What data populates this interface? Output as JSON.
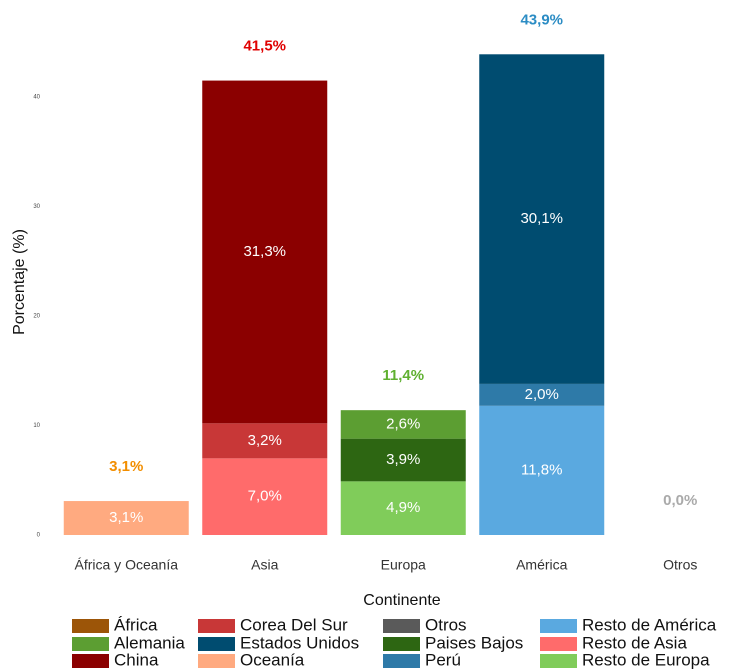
{
  "chart_data": {
    "type": "stacked_bar",
    "x_label": "Continente",
    "y_label": "Porcentaje (%)",
    "categories": [
      "África y Oceanía",
      "Asia",
      "Europa",
      "América",
      "Otros"
    ],
    "ylim": [
      0,
      48
    ],
    "yticks": [
      0,
      10,
      20,
      30,
      40
    ],
    "series": [
      {
        "name": "África",
        "color": "#9c5508",
        "values": [
          null,
          null,
          null,
          null,
          null
        ]
      },
      {
        "name": "Alemania",
        "color": "#5c9e32",
        "values": [
          null,
          null,
          2.6,
          null,
          null
        ],
        "value_labels": [
          null,
          null,
          "2,6%",
          null,
          null
        ]
      },
      {
        "name": "China",
        "color": "#8b0000",
        "values": [
          null,
          31.3,
          null,
          null,
          null
        ],
        "value_labels": [
          null,
          "31,3%",
          null,
          null,
          null
        ]
      },
      {
        "name": "Corea Del Sur",
        "color": "#c83737",
        "values": [
          null,
          3.2,
          null,
          null,
          null
        ],
        "value_labels": [
          null,
          "3,2%",
          null,
          null,
          null
        ]
      },
      {
        "name": "Estados Unidos",
        "color": "#004c70",
        "values": [
          null,
          null,
          null,
          30.1,
          null
        ],
        "value_labels": [
          null,
          null,
          null,
          "30,1%",
          null
        ]
      },
      {
        "name": "Oceanía",
        "color": "#ffaa80",
        "values": [
          3.1,
          null,
          null,
          null,
          null
        ],
        "value_labels": [
          "3,1%",
          null,
          null,
          null,
          null
        ]
      },
      {
        "name": "Otros",
        "color": "#5a5a5a",
        "values": [
          null,
          null,
          null,
          null,
          null
        ]
      },
      {
        "name": "Paises Bajos",
        "color": "#2d6612",
        "values": [
          null,
          null,
          3.9,
          null,
          null
        ],
        "value_labels": [
          null,
          null,
          "3,9%",
          null,
          null
        ]
      },
      {
        "name": "Perú",
        "color": "#2e7aa8",
        "values": [
          null,
          null,
          null,
          2.0,
          null
        ],
        "value_labels": [
          null,
          null,
          null,
          "2,0%",
          null
        ]
      },
      {
        "name": "Resto de América",
        "color": "#5aa9e0",
        "values": [
          null,
          null,
          null,
          11.8,
          null
        ],
        "value_labels": [
          null,
          null,
          null,
          "11,8%",
          null
        ]
      },
      {
        "name": "Resto de Asia",
        "color": "#ff6b6b",
        "values": [
          null,
          7.0,
          null,
          null,
          null
        ],
        "value_labels": [
          null,
          "7,0%",
          null,
          null,
          null
        ]
      },
      {
        "name": "Resto de Europa",
        "color": "#80cc5a",
        "values": [
          null,
          null,
          4.9,
          null,
          null
        ],
        "value_labels": [
          null,
          null,
          "4,9%",
          null,
          null
        ]
      }
    ],
    "totals": [
      3.1,
      41.5,
      11.4,
      43.9,
      0.0
    ],
    "total_labels": [
      "3,1%",
      "41,5%",
      "11,4%",
      "43,9%",
      "0,0%"
    ],
    "total_colors": [
      "#f28e00",
      "#e00000",
      "#5fb030",
      "#2b8cc4",
      "#aaaaaa"
    ]
  }
}
